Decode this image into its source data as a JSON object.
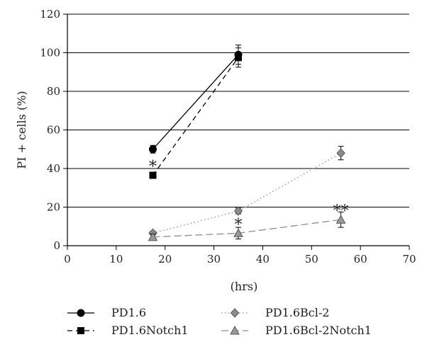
{
  "chart_data": {
    "type": "line",
    "xlabel": "(hrs)",
    "ylabel": "PI + cells (%)",
    "xlim": [
      0,
      70
    ],
    "ylim": [
      0,
      120
    ],
    "xticks": [
      0,
      10,
      20,
      30,
      40,
      50,
      60,
      70
    ],
    "yticks": [
      0,
      20,
      40,
      60,
      80,
      100,
      120
    ],
    "grid": "horizontal",
    "legend_position": "bottom",
    "series": [
      {
        "name": "PD1.6",
        "marker": "circle",
        "line": "solid",
        "color": "#000000",
        "markerFill": "#000000",
        "x": [
          17.5,
          35
        ],
        "y": [
          50,
          99
        ],
        "err": [
          2,
          5
        ]
      },
      {
        "name": "PD1.6Notch1",
        "marker": "square",
        "line": "dashed",
        "color": "#000000",
        "markerFill": "#000000",
        "x": [
          17.5,
          35
        ],
        "y": [
          36.5,
          97.5
        ],
        "err": [
          1.5,
          5
        ]
      },
      {
        "name": "PD1.6Bcl-2",
        "marker": "diamond",
        "line": "dotted",
        "color": "#8c8c8c",
        "markerFill": "#8c8c8c",
        "x": [
          17.5,
          35,
          56
        ],
        "y": [
          6.5,
          18,
          48
        ],
        "err": [
          1,
          1.5,
          3.5
        ]
      },
      {
        "name": "PD1.6Bcl-2Notch1",
        "marker": "triangle",
        "line": "longdash",
        "color": "#8c8c8c",
        "markerFill": "#999999",
        "x": [
          17.5,
          35,
          56
        ],
        "y": [
          4.5,
          6.5,
          13.5
        ],
        "err": [
          1.5,
          3,
          4
        ]
      }
    ],
    "annotations": [
      {
        "text": "*",
        "x": 17.5,
        "y": 42
      },
      {
        "text": "*",
        "x": 35,
        "y": 12
      },
      {
        "text": "**",
        "x": 56,
        "y": 19
      }
    ]
  }
}
